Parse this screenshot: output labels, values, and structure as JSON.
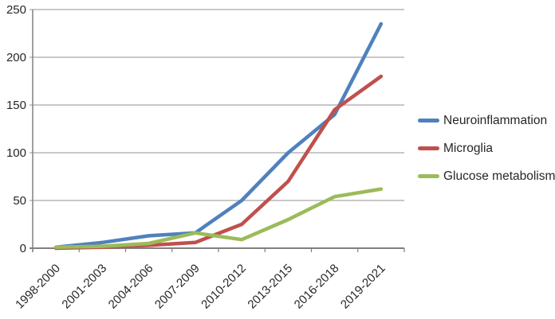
{
  "chart_data": {
    "type": "line",
    "title": "",
    "xlabel": "",
    "ylabel": "",
    "categories": [
      "1998-2000",
      "2001-2003",
      "2004-2006",
      "2007-2009",
      "2010-2012",
      "2013-2015",
      "2016-2018",
      "2019-2021"
    ],
    "series": [
      {
        "name": "Neuroinflammation",
        "color": "#4f81bd",
        "values": [
          1,
          6,
          13,
          16,
          50,
          100,
          140,
          235
        ]
      },
      {
        "name": "Microglia",
        "color": "#c0504d",
        "values": [
          0,
          1,
          3,
          6,
          25,
          70,
          145,
          180
        ]
      },
      {
        "name": "Glucose metabolism",
        "color": "#9bbb59",
        "values": [
          1,
          2,
          5,
          16,
          9,
          30,
          54,
          62
        ]
      }
    ],
    "ylim": [
      0,
      250
    ],
    "ytick_step": 50,
    "ytick_labels": [
      "0",
      "50",
      "100",
      "150",
      "200",
      "250"
    ],
    "grid": true,
    "legend_position": "right",
    "colors": {
      "gridline": "#a6a6a6",
      "axis": "#808080",
      "text": "#262626",
      "background": "#ffffff"
    }
  }
}
